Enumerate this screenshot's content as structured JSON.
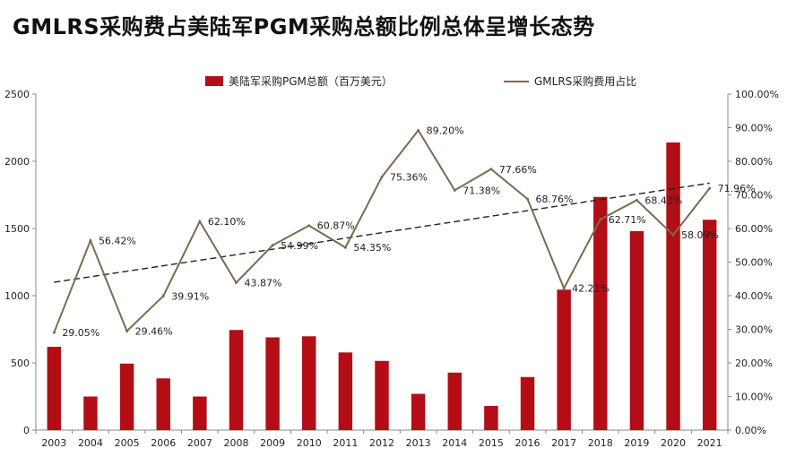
{
  "chart_data": {
    "type": "bar+line",
    "title": "GMLRS采购费占美陆军PGM采购总额比例总体呈增长态势",
    "categories": [
      "2003",
      "2004",
      "2005",
      "2006",
      "2007",
      "2008",
      "2009",
      "2010",
      "2011",
      "2012",
      "2013",
      "2014",
      "2015",
      "2016",
      "2017",
      "2018",
      "2019",
      "2020",
      "2021"
    ],
    "series": [
      {
        "name": "美陆军采购PGM总额（百万美元）",
        "type": "bar",
        "axis": "left",
        "color": "#b30d16",
        "values": [
          620,
          250,
          495,
          385,
          250,
          745,
          690,
          698,
          578,
          515,
          270,
          428,
          180,
          395,
          1045,
          1735,
          1480,
          2140,
          1565
        ]
      },
      {
        "name": "GMLRS采购费用占比",
        "type": "line",
        "axis": "right",
        "color": "#7a6a50",
        "values": [
          29.05,
          56.42,
          29.46,
          39.91,
          62.1,
          43.87,
          54.99,
          60.87,
          54.35,
          75.36,
          89.2,
          71.38,
          77.66,
          68.76,
          42.21,
          62.71,
          68.43,
          58.09,
          71.96
        ],
        "labels": [
          "29.05%",
          "56.42%",
          "29.46%",
          "39.91%",
          "62.10%",
          "43.87%",
          "54.99%",
          "60.87%",
          "54.35%",
          "75.36%",
          "89.20%",
          "71.38%",
          "77.66%",
          "68.76%",
          "42.21%",
          "62.71%",
          "68.43%",
          "58.09%",
          "71.96%"
        ]
      }
    ],
    "trendline": {
      "style": "dashed",
      "color": "#222222",
      "series": "GMLRS采购费用占比",
      "start": 44.0,
      "end": 73.5
    },
    "y_left": {
      "min": 0,
      "max": 2500,
      "ticks": [
        "0",
        "500",
        "1000",
        "1500",
        "2000",
        "2500"
      ]
    },
    "y_right": {
      "min": 0,
      "max": 100,
      "ticks": [
        "0.00%",
        "10.00%",
        "20.00%",
        "30.00%",
        "40.00%",
        "50.00%",
        "60.00%",
        "70.00%",
        "80.00%",
        "90.00%",
        "100.00%"
      ]
    },
    "legend": "top",
    "grid": false
  }
}
